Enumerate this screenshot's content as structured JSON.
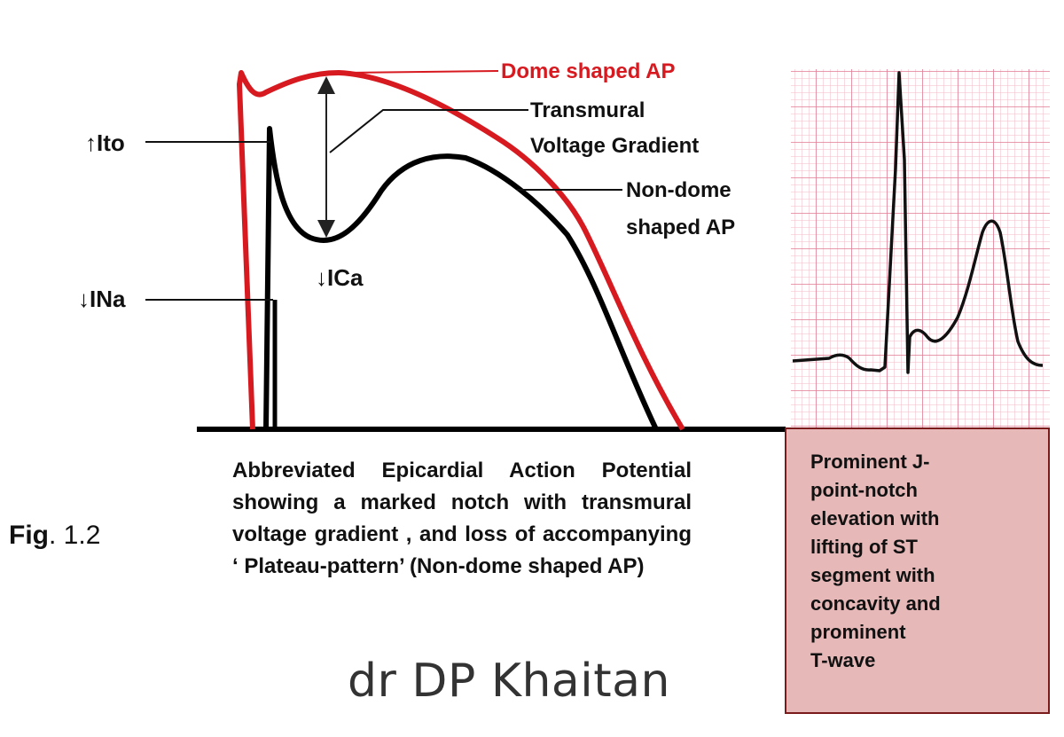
{
  "diagram": {
    "labels": {
      "dome_ap": "Dome shaped AP",
      "transmural_line1": "Transmural",
      "transmural_line2": "Voltage Gradient",
      "nondome_line1": "Non-dome",
      "nondome_line2": "shaped AP",
      "ito": "↑Ito",
      "ina": "↓INa",
      "ica": "↓ICa"
    },
    "colors": {
      "dome_curve": "#d71920",
      "nondome_curve": "#000000",
      "ecg_grid_fine": "#f2b8c4",
      "ecg_grid_major": "#e07a92",
      "ecg_box_fill": "#e6b8b8"
    },
    "caption": "Abbreviated Epicardial Action Potential showing a marked notch with transmural voltage gradient , and loss of accompanying ‘ Plateau-pattern’ (Non-dome shaped AP)",
    "figure_label_bold": "Fig",
    "figure_label_number": ". 1.2",
    "author": "dr DP Khaitan",
    "ecg_description": "Prominent J-\npoint-notch\nelevation with\nlifting of  ST\nsegment  with\nconcavity and\nprominent\nT-wave"
  }
}
